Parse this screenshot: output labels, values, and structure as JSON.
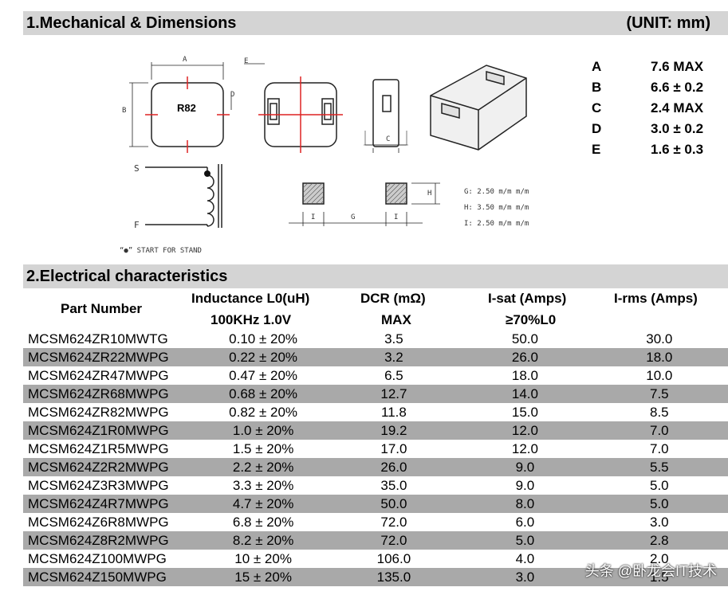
{
  "section1": {
    "title": "1.Mechanical & Dimensions",
    "unit": "(UNIT: mm)"
  },
  "dimensions": [
    {
      "key": "A",
      "value": "7.6 MAX"
    },
    {
      "key": "B",
      "value": "6.6 ± 0.2"
    },
    {
      "key": "C",
      "value": "2.4 MAX"
    },
    {
      "key": "D",
      "value": "3.0 ± 0.2"
    },
    {
      "key": "E",
      "value": "1.6 ± 0.3"
    }
  ],
  "drawing": {
    "top_label": "R82",
    "label_a": "A",
    "label_b": "B",
    "label_c": "C",
    "label_d": "D",
    "label_e": "E",
    "label_s": "S",
    "label_f": "F",
    "start_note": "“●” START FOR STAND",
    "pad_i1": "I",
    "pad_g": "G",
    "pad_i2": "I",
    "pad_h": "H",
    "pad_notes": [
      "G: 2.50 m/m m/m",
      "H: 3.50 m/m m/m",
      "I: 2.50 m/m m/m"
    ]
  },
  "section2": {
    "title": "2.Electrical characteristics"
  },
  "headers": {
    "part": "Part Number",
    "ind1": "Inductance L0(uH)",
    "ind2": "100KHz 1.0V",
    "dcr1": "DCR (mΩ)",
    "dcr2": "MAX",
    "isat1": "I-sat  (Amps)",
    "isat2": "≥70%L0",
    "irms": "I-rms  (Amps)"
  },
  "rows": [
    [
      "MCSM624ZR10MWTG",
      "0.10 ± 20%",
      "3.5",
      "50.0",
      "30.0"
    ],
    [
      "MCSM624ZR22MWPG",
      "0.22 ± 20%",
      "3.2",
      "26.0",
      "18.0"
    ],
    [
      "MCSM624ZR47MWPG",
      "0.47 ± 20%",
      "6.5",
      "18.0",
      "10.0"
    ],
    [
      "MCSM624ZR68MWPG",
      "0.68 ± 20%",
      "12.7",
      "14.0",
      "7.5"
    ],
    [
      "MCSM624ZR82MWPG",
      "0.82 ± 20%",
      "11.8",
      "15.0",
      "8.5"
    ],
    [
      "MCSM624Z1R0MWPG",
      "1.0 ± 20%",
      "19.2",
      "12.0",
      "7.0"
    ],
    [
      "MCSM624Z1R5MWPG",
      "1.5 ± 20%",
      "17.0",
      "12.0",
      "7.0"
    ],
    [
      "MCSM624Z2R2MWPG",
      "2.2 ± 20%",
      "26.0",
      "9.0",
      "5.5"
    ],
    [
      "MCSM624Z3R3MWPG",
      "3.3 ± 20%",
      "35.0",
      "9.0",
      "5.0"
    ],
    [
      "MCSM624Z4R7MWPG",
      "4.7 ± 20%",
      "50.0",
      "8.0",
      "5.0"
    ],
    [
      "MCSM624Z6R8MWPG",
      "6.8 ± 20%",
      "72.0",
      "6.0",
      "3.0"
    ],
    [
      "MCSM624Z8R2MWPG",
      "8.2 ± 20%",
      "72.0",
      "5.0",
      "2.8"
    ],
    [
      "MCSM624Z100MWPG",
      "10 ± 20%",
      "106.0",
      "4.0",
      "2.0"
    ],
    [
      "MCSM624Z150MWPG",
      "15 ± 20%",
      "135.0",
      "3.0",
      "1.5"
    ]
  ],
  "watermark": "头条 @卧龙会IT技术"
}
